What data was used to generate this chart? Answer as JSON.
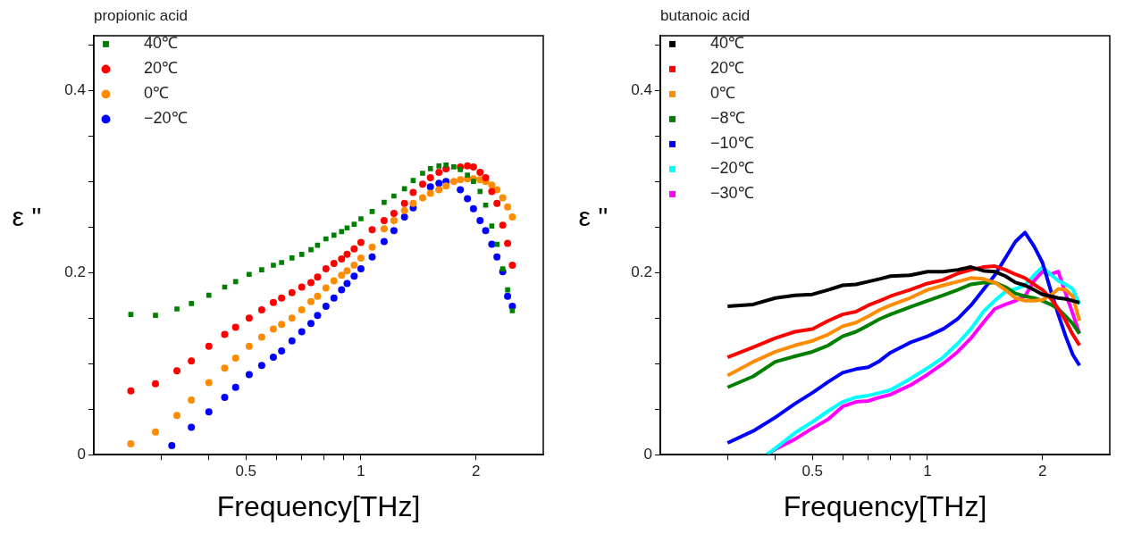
{
  "chart_data": [
    {
      "type": "scatter",
      "xlabel": "Frequency[THz]",
      "ylabel": "ε ''",
      "legend_title": "propionic acid",
      "legend": "top left",
      "grid": false,
      "log": "x",
      "xlim": [
        0.2,
        3
      ],
      "xticks": [
        {
          "value": 0.3,
          "label": null
        },
        {
          "value": 0.4,
          "label": null
        },
        0.5,
        {
          "value": 0.6,
          "label": null
        },
        {
          "value": 0.7,
          "label": null
        },
        {
          "value": 0.8,
          "label": null
        },
        {
          "value": 0.9,
          "label": null
        },
        1,
        2
      ],
      "ylim": [
        0,
        0.46
      ],
      "yticks": [
        0,
        {
          "value": 0.05,
          "label": null
        },
        {
          "value": 0.1,
          "label": null
        },
        {
          "value": 0.15,
          "label": null
        },
        0.2,
        {
          "value": 0.25,
          "label": null
        },
        {
          "value": 0.3,
          "label": null
        },
        {
          "value": 0.35,
          "label": null
        },
        0.4,
        {
          "value": 0.45,
          "label": null
        }
      ],
      "x": [
        0.25,
        0.29,
        0.33,
        0.36,
        0.4,
        0.44,
        0.47,
        0.51,
        0.55,
        0.59,
        0.62,
        0.66,
        0.7,
        0.74,
        0.77,
        0.81,
        0.85,
        0.89,
        0.92,
        0.96,
        1.0,
        1.07,
        1.15,
        1.22,
        1.3,
        1.37,
        1.45,
        1.52,
        1.6,
        1.67,
        1.75,
        1.82,
        1.9,
        1.97,
        2.05,
        2.12,
        2.2,
        2.27,
        2.35,
        2.42,
        2.49
      ],
      "series": [
        {
          "name": "40℃",
          "color": "#008000",
          "marker": "square",
          "values": [
            0.154,
            0.153,
            0.16,
            0.166,
            0.175,
            0.184,
            0.19,
            0.198,
            0.203,
            0.208,
            0.211,
            0.216,
            0.22,
            0.225,
            0.23,
            0.237,
            0.241,
            0.245,
            0.249,
            0.253,
            0.259,
            0.267,
            0.277,
            0.284,
            0.292,
            0.301,
            0.309,
            0.314,
            0.317,
            0.318,
            0.316,
            0.313,
            0.307,
            0.3,
            0.289,
            0.274,
            0.251,
            0.231,
            0.204,
            0.181,
            0.158
          ]
        },
        {
          "name": "20℃",
          "color": "#ff0000",
          "marker": "circle",
          "values": [
            0.07,
            0.078,
            0.092,
            0.103,
            0.119,
            0.132,
            0.14,
            0.15,
            0.159,
            0.167,
            0.172,
            0.178,
            0.184,
            0.189,
            0.195,
            0.204,
            0.21,
            0.215,
            0.22,
            0.226,
            0.233,
            0.247,
            0.257,
            0.265,
            0.276,
            0.288,
            0.297,
            0.304,
            0.31,
            0.314,
            null,
            0.316,
            0.317,
            0.316,
            0.31,
            0.304,
            0.289,
            0.276,
            0.252,
            0.232,
            0.208
          ]
        },
        {
          "name": "0℃",
          "color": "#ff8c00",
          "marker": "circle",
          "values": [
            0.012,
            0.025,
            0.043,
            0.06,
            0.079,
            0.095,
            0.106,
            0.119,
            0.129,
            0.138,
            0.143,
            0.15,
            0.159,
            0.168,
            0.174,
            0.183,
            0.191,
            0.197,
            0.202,
            0.208,
            0.216,
            0.228,
            0.248,
            0.257,
            0.268,
            0.276,
            0.282,
            0.287,
            0.291,
            0.295,
            0.3,
            0.302,
            0.303,
            0.303,
            0.302,
            0.3,
            0.296,
            0.291,
            0.282,
            0.272,
            0.261
          ]
        },
        {
          "name": "−20℃",
          "color": "#0000ff",
          "marker": "circle",
          "x": [
            0.32,
            0.36,
            0.4,
            0.44,
            0.47,
            0.51,
            0.55,
            0.59,
            0.62,
            0.66,
            0.7,
            0.74,
            0.77,
            0.81,
            0.85,
            0.89,
            0.92,
            0.96,
            1.0,
            1.07,
            1.15,
            1.22,
            1.3,
            1.37,
            1.45,
            1.52,
            1.6,
            1.67,
            1.75,
            1.82,
            1.9,
            1.97,
            2.05,
            2.12,
            2.2,
            2.27,
            2.35,
            2.42,
            2.49
          ],
          "values": [
            0.01,
            0.03,
            0.047,
            0.063,
            0.074,
            0.088,
            0.098,
            0.107,
            0.114,
            0.125,
            0.135,
            0.144,
            0.153,
            0.163,
            0.172,
            0.181,
            0.188,
            0.196,
            0.204,
            0.217,
            0.234,
            0.246,
            0.261,
            0.271,
            null,
            0.294,
            0.298,
            0.3,
            null,
            0.291,
            0.281,
            0.27,
            0.257,
            0.246,
            0.231,
            0.217,
            0.201,
            0.174,
            0.163
          ]
        }
      ]
    },
    {
      "type": "line",
      "xlabel": "Frequency[THz]",
      "ylabel": "ε ''",
      "legend_title": "butanoic acid",
      "legend": "top left",
      "grid": false,
      "log": "x",
      "marker": "none",
      "xlim": [
        0.2,
        3
      ],
      "xticks": [
        {
          "value": 0.3,
          "label": null
        },
        {
          "value": 0.4,
          "label": null
        },
        0.5,
        {
          "value": 0.6,
          "label": null
        },
        {
          "value": 0.7,
          "label": null
        },
        {
          "value": 0.8,
          "label": null
        },
        {
          "value": 0.9,
          "label": null
        },
        1,
        2
      ],
      "ylim": [
        0,
        0.46
      ],
      "yticks": [
        0,
        {
          "value": 0.05,
          "label": null
        },
        {
          "value": 0.1,
          "label": null
        },
        {
          "value": 0.15,
          "label": null
        },
        0.2,
        {
          "value": 0.25,
          "label": null
        },
        {
          "value": 0.3,
          "label": null
        },
        {
          "value": 0.35,
          "label": null
        },
        0.4,
        {
          "value": 0.45,
          "label": null
        }
      ],
      "x": [
        0.3,
        0.35,
        0.4,
        0.45,
        0.5,
        0.55,
        0.6,
        0.65,
        0.7,
        0.75,
        0.8,
        0.9,
        1.0,
        1.1,
        1.2,
        1.3,
        1.4,
        1.5,
        1.6,
        1.7,
        1.8,
        1.9,
        2.0,
        2.1,
        2.2,
        2.3,
        2.4,
        2.5
      ],
      "series": [
        {
          "name": "40℃",
          "color": "#000000",
          "values": [
            0.163,
            0.165,
            0.172,
            0.175,
            0.176,
            0.181,
            0.186,
            0.187,
            0.19,
            0.193,
            0.196,
            0.197,
            0.201,
            0.201,
            0.203,
            0.206,
            0.202,
            0.201,
            0.196,
            0.189,
            0.186,
            0.181,
            0.176,
            0.174,
            0.172,
            0.171,
            0.169,
            0.167
          ]
        },
        {
          "name": "20℃",
          "color": "#ff0000",
          "values": [
            0.107,
            0.118,
            0.128,
            0.135,
            0.138,
            0.147,
            0.154,
            0.157,
            0.164,
            0.169,
            0.174,
            0.181,
            0.188,
            0.192,
            0.199,
            0.203,
            0.206,
            0.207,
            0.203,
            0.198,
            0.194,
            0.187,
            0.181,
            0.172,
            0.16,
            0.147,
            0.132,
            0.12
          ]
        },
        {
          "name": "0℃",
          "color": "#ff8c00",
          "values": [
            0.087,
            0.102,
            0.113,
            0.12,
            0.125,
            0.132,
            0.141,
            0.145,
            0.152,
            0.159,
            0.164,
            0.172,
            0.181,
            0.186,
            0.19,
            0.194,
            0.193,
            0.189,
            0.181,
            0.172,
            0.169,
            0.169,
            0.17,
            0.175,
            0.182,
            0.181,
            0.174,
            0.147
          ]
        },
        {
          "name": "−8℃",
          "color": "#008000",
          "values": [
            0.074,
            0.086,
            0.102,
            0.108,
            0.113,
            0.12,
            0.13,
            0.135,
            0.142,
            0.149,
            0.154,
            0.162,
            0.169,
            0.175,
            0.181,
            0.187,
            0.189,
            0.189,
            0.184,
            0.177,
            0.174,
            0.172,
            0.169,
            0.165,
            0.16,
            0.152,
            0.144,
            0.133
          ]
        },
        {
          "name": "−10℃",
          "color": "#0000ff",
          "values": [
            0.013,
            0.026,
            0.041,
            0.056,
            0.068,
            0.08,
            0.09,
            0.094,
            0.096,
            0.103,
            0.112,
            0.123,
            0.13,
            0.138,
            0.149,
            0.164,
            0.181,
            0.197,
            0.216,
            0.234,
            0.244,
            0.229,
            0.211,
            0.181,
            0.154,
            0.13,
            0.11,
            0.098
          ]
        },
        {
          "name": "−20℃",
          "color": "#00ffff",
          "x": [
            0.38,
            0.4,
            0.45,
            0.5,
            0.55,
            0.6,
            0.65,
            0.7,
            0.75,
            0.8,
            0.9,
            1.0,
            1.1,
            1.2,
            1.3,
            1.4,
            1.5,
            1.6,
            1.7,
            1.8,
            1.9,
            2.0,
            2.1,
            2.2,
            2.3,
            2.4,
            2.5
          ],
          "values": [
            0.0,
            0.007,
            0.024,
            0.036,
            0.048,
            0.058,
            0.063,
            0.065,
            0.068,
            0.071,
            0.083,
            0.095,
            0.107,
            0.122,
            0.138,
            0.157,
            0.169,
            0.179,
            0.182,
            0.186,
            0.197,
            0.206,
            0.198,
            0.191,
            0.187,
            0.182,
            0.165
          ]
        },
        {
          "name": "−30℃",
          "color": "#ff00ff",
          "x": [
            0.38,
            0.4,
            0.45,
            0.5,
            0.55,
            0.6,
            0.65,
            0.7,
            0.75,
            0.8,
            0.9,
            1.0,
            1.1,
            1.2,
            1.3,
            1.4,
            1.5,
            1.6,
            1.7,
            1.8,
            1.9,
            2.0,
            2.1,
            2.2,
            2.3,
            2.4,
            2.5
          ],
          "values": [
            0.0,
            0.006,
            0.017,
            0.029,
            0.039,
            0.053,
            0.058,
            0.059,
            0.063,
            0.066,
            0.076,
            0.088,
            0.1,
            0.113,
            0.128,
            0.145,
            0.16,
            0.165,
            0.169,
            0.174,
            0.191,
            0.201,
            0.198,
            0.201,
            0.177,
            0.155,
            0.133
          ]
        }
      ]
    }
  ]
}
